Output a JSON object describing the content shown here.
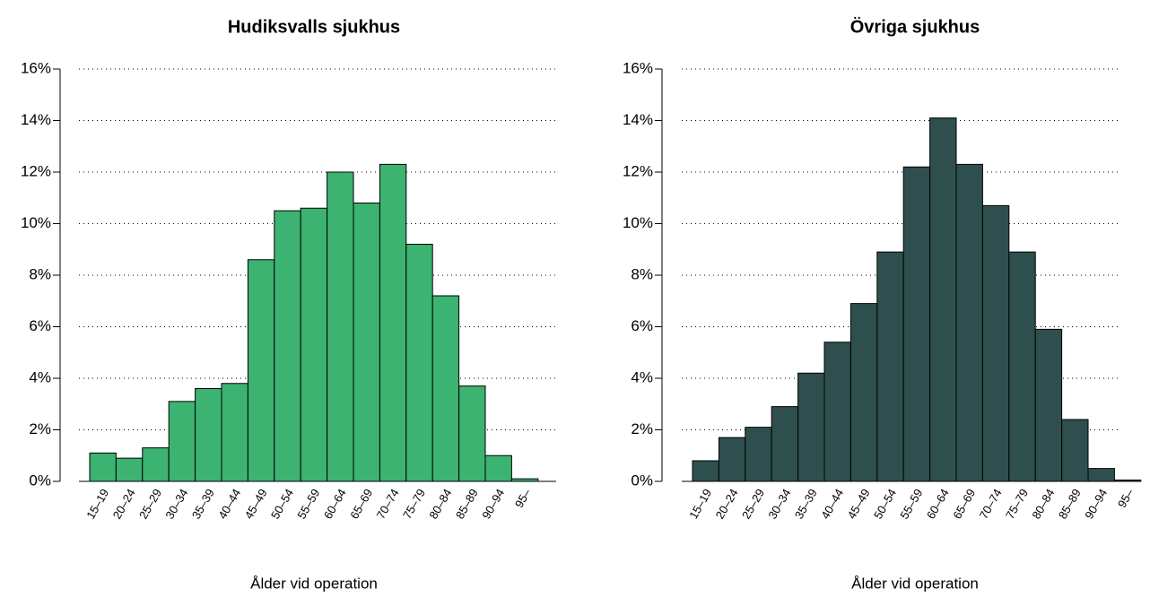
{
  "chart_data": [
    {
      "type": "bar",
      "title": "Hudiksvalls sjukhus",
      "x_label": "Ålder vid operation",
      "categories": [
        "15–19",
        "20–24",
        "25–29",
        "30–34",
        "35–39",
        "40–44",
        "45–49",
        "50–54",
        "55–59",
        "60–64",
        "65–69",
        "70–74",
        "75–79",
        "80–84",
        "85–89",
        "90–94",
        "95–"
      ],
      "values": [
        1.1,
        0.9,
        1.3,
        3.1,
        3.6,
        3.8,
        8.6,
        10.5,
        10.6,
        12.0,
        10.8,
        12.3,
        9.2,
        7.2,
        3.7,
        1.0,
        0.1
      ],
      "color": "#3cb371",
      "ylim": [
        0,
        16
      ],
      "yticks": [
        {
          "value": 0,
          "label": "0%"
        },
        {
          "value": 2,
          "label": "2%"
        },
        {
          "value": 4,
          "label": "4%"
        },
        {
          "value": 6,
          "label": "6%"
        },
        {
          "value": 8,
          "label": "8%"
        },
        {
          "value": 10,
          "label": "10%"
        },
        {
          "value": 12,
          "label": "12%"
        },
        {
          "value": 14,
          "label": "14%"
        },
        {
          "value": 16,
          "label": "16%"
        }
      ],
      "grid": true
    },
    {
      "type": "bar",
      "title": "Övriga sjukhus",
      "x_label": "Ålder vid operation",
      "categories": [
        "15–19",
        "20–24",
        "25–29",
        "30–34",
        "35–39",
        "40–44",
        "45–49",
        "50–54",
        "55–59",
        "60–64",
        "65–69",
        "70–74",
        "75–79",
        "80–84",
        "85–89",
        "90–94",
        "95–"
      ],
      "values": [
        0.8,
        1.7,
        2.1,
        2.9,
        4.2,
        5.4,
        6.9,
        8.9,
        12.2,
        14.1,
        12.3,
        10.7,
        8.9,
        5.9,
        2.4,
        0.5,
        0.05
      ],
      "color": "#2f4f4f",
      "ylim": [
        0,
        16
      ],
      "yticks": [
        {
          "value": 0,
          "label": "0%"
        },
        {
          "value": 2,
          "label": "2%"
        },
        {
          "value": 4,
          "label": "4%"
        },
        {
          "value": 6,
          "label": "6%"
        },
        {
          "value": 8,
          "label": "8%"
        },
        {
          "value": 10,
          "label": "10%"
        },
        {
          "value": 12,
          "label": "12%"
        },
        {
          "value": 14,
          "label": "14%"
        },
        {
          "value": 16,
          "label": "16%"
        }
      ],
      "grid": true
    }
  ]
}
